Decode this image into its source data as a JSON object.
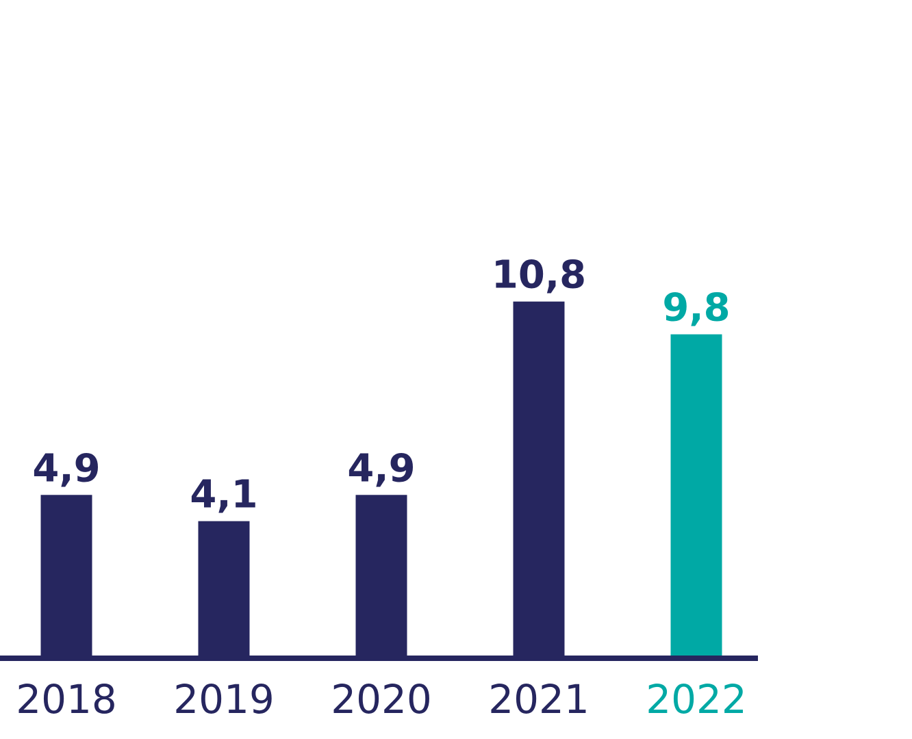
{
  "chart_data": {
    "type": "bar",
    "title": "",
    "xlabel": "",
    "ylabel": "",
    "categories": [
      "2018",
      "2019",
      "2020",
      "2021",
      "2022"
    ],
    "values": [
      4.9,
      4.1,
      4.9,
      10.8,
      9.8
    ],
    "value_labels": [
      "4,9",
      "4,1",
      "4,9",
      "10,8",
      "9,8"
    ],
    "ylim": [
      0,
      20
    ],
    "grid": false,
    "legend": "none",
    "colors": {
      "default": "#26265f",
      "highlight": "#00a9a5",
      "axis": "#26265f"
    },
    "highlight_index": 4
  }
}
